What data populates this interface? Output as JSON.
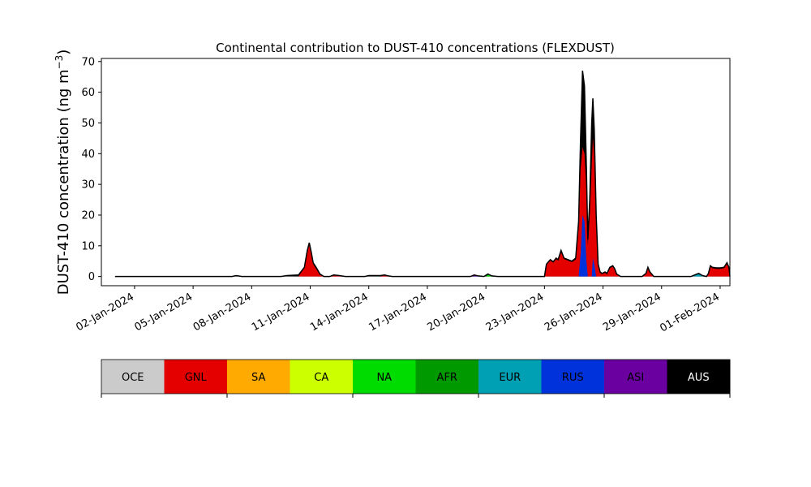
{
  "chart_data": {
    "type": "area",
    "title": "Continental contribution to DUST-410 concentrations (FLEXDUST)",
    "ylabel_main": "DUST-410 concentration (ng m",
    "ylabel_exp": "−3",
    "ylabel_close": ")",
    "xlabel": "",
    "x_unit": "days in January–February 2024 (day 1 = 01-Jan-2024)",
    "xlim": [
      0.3,
      32.5
    ],
    "ylim": [
      -3,
      71
    ],
    "yticks": [
      0,
      10,
      20,
      30,
      40,
      50,
      60,
      70
    ],
    "xticks": [
      {
        "day": 2,
        "label": "02-Jan-2024"
      },
      {
        "day": 5,
        "label": "05-Jan-2024"
      },
      {
        "day": 8,
        "label": "08-Jan-2024"
      },
      {
        "day": 11,
        "label": "11-Jan-2024"
      },
      {
        "day": 14,
        "label": "14-Jan-2024"
      },
      {
        "day": 17,
        "label": "17-Jan-2024"
      },
      {
        "day": 20,
        "label": "20-Jan-2024"
      },
      {
        "day": 23,
        "label": "23-Jan-2024"
      },
      {
        "day": 26,
        "label": "26-Jan-2024"
      },
      {
        "day": 29,
        "label": "29-Jan-2024"
      },
      {
        "day": 32,
        "label": "01-Feb-2024"
      }
    ],
    "total_series": {
      "name": "Total",
      "color": "#000000",
      "points": [
        [
          1.0,
          0.0
        ],
        [
          7.0,
          0.0
        ],
        [
          7.2,
          0.3
        ],
        [
          7.5,
          0.0
        ],
        [
          9.5,
          0.0
        ],
        [
          9.8,
          0.3
        ],
        [
          10.4,
          0.5
        ],
        [
          10.7,
          3.0
        ],
        [
          10.85,
          8.5
        ],
        [
          10.95,
          11.0
        ],
        [
          11.05,
          8.0
        ],
        [
          11.15,
          4.5
        ],
        [
          11.3,
          3.0
        ],
        [
          11.5,
          0.8
        ],
        [
          11.7,
          0.0
        ],
        [
          12.0,
          0.0
        ],
        [
          12.2,
          0.5
        ],
        [
          12.5,
          0.3
        ],
        [
          12.8,
          0.0
        ],
        [
          13.8,
          0.0
        ],
        [
          14.0,
          0.3
        ],
        [
          14.6,
          0.3
        ],
        [
          14.8,
          0.5
        ],
        [
          15.0,
          0.2
        ],
        [
          15.2,
          0.0
        ],
        [
          19.2,
          0.0
        ],
        [
          19.4,
          0.5
        ],
        [
          19.6,
          0.2
        ],
        [
          19.9,
          0.0
        ],
        [
          20.1,
          0.8
        ],
        [
          20.3,
          0.2
        ],
        [
          20.6,
          0.0
        ],
        [
          23.0,
          0.0
        ],
        [
          23.1,
          4.0
        ],
        [
          23.3,
          5.5
        ],
        [
          23.45,
          4.8
        ],
        [
          23.6,
          6.0
        ],
        [
          23.7,
          5.5
        ],
        [
          23.85,
          8.5
        ],
        [
          24.0,
          6.0
        ],
        [
          24.2,
          5.5
        ],
        [
          24.4,
          5.0
        ],
        [
          24.6,
          6.0
        ],
        [
          24.75,
          18.0
        ],
        [
          24.85,
          45.0
        ],
        [
          24.95,
          67.0
        ],
        [
          25.05,
          62.0
        ],
        [
          25.15,
          35.0
        ],
        [
          25.22,
          12.0
        ],
        [
          25.32,
          25.0
        ],
        [
          25.42,
          50.0
        ],
        [
          25.48,
          58.0
        ],
        [
          25.55,
          48.0
        ],
        [
          25.65,
          20.0
        ],
        [
          25.75,
          4.0
        ],
        [
          25.85,
          1.5
        ],
        [
          25.95,
          1.0
        ],
        [
          26.1,
          1.5
        ],
        [
          26.2,
          1.0
        ],
        [
          26.35,
          3.0
        ],
        [
          26.5,
          3.5
        ],
        [
          26.6,
          2.5
        ],
        [
          26.7,
          0.8
        ],
        [
          26.9,
          0.0
        ],
        [
          28.0,
          0.0
        ],
        [
          28.2,
          1.0
        ],
        [
          28.3,
          3.0
        ],
        [
          28.4,
          1.5
        ],
        [
          28.6,
          0.0
        ],
        [
          30.5,
          0.0
        ],
        [
          30.7,
          0.5
        ],
        [
          30.9,
          1.0
        ],
        [
          31.1,
          0.3
        ],
        [
          31.3,
          0.0
        ],
        [
          31.4,
          1.0
        ],
        [
          31.5,
          3.5
        ],
        [
          31.6,
          3.0
        ],
        [
          31.8,
          2.8
        ],
        [
          32.0,
          2.8
        ],
        [
          32.2,
          3.0
        ],
        [
          32.35,
          4.5
        ],
        [
          32.45,
          3.0
        ],
        [
          32.5,
          0.0
        ]
      ]
    },
    "layers": [
      {
        "name": "GNL",
        "color": "#e50000",
        "points": [
          [
            1.0,
            0.0
          ],
          [
            10.4,
            0.0
          ],
          [
            10.7,
            2.8
          ],
          [
            10.85,
            8.0
          ],
          [
            10.95,
            10.5
          ],
          [
            11.05,
            7.5
          ],
          [
            11.15,
            4.0
          ],
          [
            11.3,
            2.5
          ],
          [
            11.5,
            0.5
          ],
          [
            11.7,
            0.0
          ],
          [
            12.0,
            0.0
          ],
          [
            12.2,
            0.4
          ],
          [
            12.5,
            0.2
          ],
          [
            12.8,
            0.0
          ],
          [
            14.6,
            0.0
          ],
          [
            14.8,
            0.4
          ],
          [
            15.0,
            0.1
          ],
          [
            15.2,
            0.0
          ],
          [
            23.0,
            0.0
          ],
          [
            23.1,
            3.8
          ],
          [
            23.3,
            5.2
          ],
          [
            23.45,
            4.5
          ],
          [
            23.6,
            5.7
          ],
          [
            23.7,
            5.2
          ],
          [
            23.85,
            8.0
          ],
          [
            24.0,
            5.7
          ],
          [
            24.2,
            5.2
          ],
          [
            24.4,
            4.7
          ],
          [
            24.6,
            5.5
          ],
          [
            24.75,
            16.0
          ],
          [
            24.85,
            35.0
          ],
          [
            24.95,
            42.0
          ],
          [
            25.05,
            40.0
          ],
          [
            25.15,
            28.0
          ],
          [
            25.22,
            10.0
          ],
          [
            25.32,
            20.0
          ],
          [
            25.42,
            36.0
          ],
          [
            25.48,
            45.0
          ],
          [
            25.55,
            40.0
          ],
          [
            25.65,
            17.0
          ],
          [
            25.75,
            3.5
          ],
          [
            25.85,
            1.2
          ],
          [
            25.95,
            0.8
          ],
          [
            26.1,
            1.2
          ],
          [
            26.2,
            0.8
          ],
          [
            26.35,
            2.7
          ],
          [
            26.5,
            3.2
          ],
          [
            26.6,
            2.2
          ],
          [
            26.7,
            0.6
          ],
          [
            26.9,
            0.0
          ],
          [
            28.0,
            0.0
          ],
          [
            28.2,
            0.8
          ],
          [
            28.3,
            2.7
          ],
          [
            28.4,
            1.2
          ],
          [
            28.6,
            0.0
          ],
          [
            31.3,
            0.0
          ],
          [
            31.4,
            0.8
          ],
          [
            31.5,
            3.2
          ],
          [
            31.6,
            2.7
          ],
          [
            31.8,
            2.5
          ],
          [
            32.0,
            2.5
          ],
          [
            32.2,
            2.7
          ],
          [
            32.35,
            4.0
          ],
          [
            32.45,
            2.7
          ],
          [
            32.5,
            0.0
          ]
        ]
      },
      {
        "name": "NA",
        "color": "#00dc00",
        "points": [
          [
            1.0,
            0.0
          ],
          [
            20.0,
            0.0
          ],
          [
            20.1,
            0.6
          ],
          [
            20.3,
            0.1
          ],
          [
            20.6,
            0.0
          ],
          [
            32.5,
            0.0
          ]
        ]
      },
      {
        "name": "EUR",
        "color": "#00a0b4",
        "points": [
          [
            1.0,
            0.0
          ],
          [
            30.5,
            0.0
          ],
          [
            30.7,
            0.4
          ],
          [
            30.9,
            0.8
          ],
          [
            31.1,
            0.2
          ],
          [
            31.3,
            0.0
          ],
          [
            32.5,
            0.0
          ]
        ]
      },
      {
        "name": "RUS",
        "color": "#0032dc",
        "points": [
          [
            1.0,
            0.0
          ],
          [
            24.75,
            0.0
          ],
          [
            24.85,
            7.0
          ],
          [
            24.95,
            20.0
          ],
          [
            25.05,
            18.0
          ],
          [
            25.15,
            5.0
          ],
          [
            25.22,
            0.0
          ],
          [
            25.42,
            0.0
          ],
          [
            25.48,
            6.0
          ],
          [
            25.55,
            4.0
          ],
          [
            25.65,
            0.0
          ],
          [
            32.5,
            0.0
          ]
        ]
      },
      {
        "name": "ASI",
        "color": "#6a00a0",
        "points": [
          [
            1.0,
            0.0
          ],
          [
            19.2,
            0.0
          ],
          [
            19.4,
            0.4
          ],
          [
            19.6,
            0.1
          ],
          [
            19.9,
            0.0
          ],
          [
            32.5,
            0.0
          ]
        ]
      }
    ],
    "legend": {
      "placement": "below-plot",
      "entries": [
        {
          "label": "OCE",
          "color": "#cbcbcb",
          "text_color": "#000000"
        },
        {
          "label": "GNL",
          "color": "#e50000",
          "text_color": "#000000"
        },
        {
          "label": "SA",
          "color": "#ffaa00",
          "text_color": "#000000"
        },
        {
          "label": "CA",
          "color": "#ccff00",
          "text_color": "#000000"
        },
        {
          "label": "NA",
          "color": "#00dc00",
          "text_color": "#000000"
        },
        {
          "label": "AFR",
          "color": "#009a00",
          "text_color": "#000000"
        },
        {
          "label": "EUR",
          "color": "#00a0b4",
          "text_color": "#000000"
        },
        {
          "label": "RUS",
          "color": "#0032dc",
          "text_color": "#000000"
        },
        {
          "label": "ASI",
          "color": "#6a00a0",
          "text_color": "#000000"
        },
        {
          "label": "AUS",
          "color": "#000000",
          "text_color": "#ffffff"
        }
      ]
    },
    "grid": false
  }
}
